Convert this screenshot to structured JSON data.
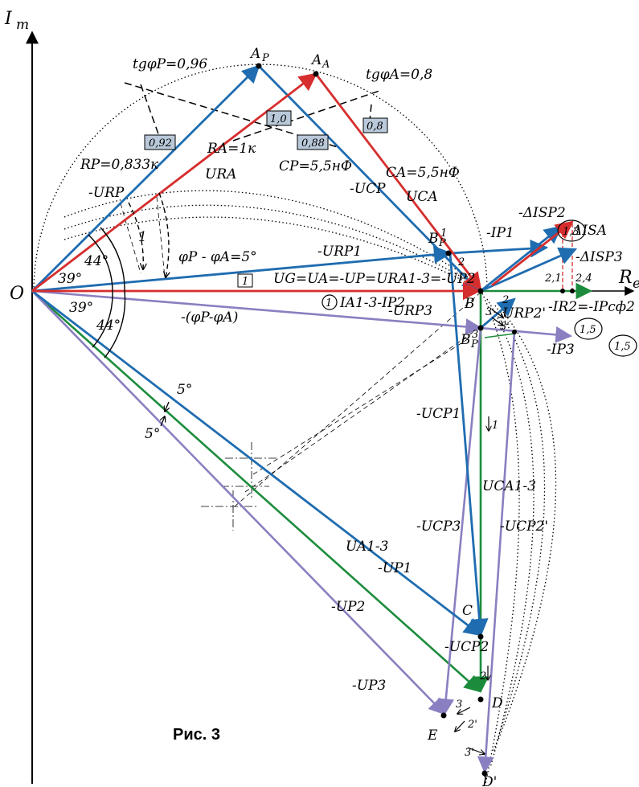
{
  "axes": {
    "y_label": "I",
    "y_sub": "m",
    "x_label": "R",
    "x_sub": "e"
  },
  "caption": "Рис. 3",
  "origin_label": "O",
  "points": {
    "AP": {
      "main": "A",
      "sub": "P"
    },
    "AA": {
      "main": "A",
      "sub": "A"
    },
    "B": "B",
    "B1P": {
      "main": "B",
      "sub": "P",
      "sup": "1"
    },
    "B3P": {
      "main": "B",
      "sub": "P",
      "sup": "3"
    },
    "C": "C",
    "D": "D",
    "Dprime": "D'",
    "E": "E"
  },
  "annotations": {
    "tgP": "tgφP=0,96",
    "tgA": "tgφA=0,8",
    "RP": "RP=0,833к",
    "RA": "RA=1к",
    "CP": "CP=5,5нФ",
    "CA": "CA=5,5нФ",
    "phi_diff": "φP - φA=5°",
    "neg_phi_diff": "-(φP-φA)",
    "UG": "UG=UA=-UP=URA1-3=-UP2",
    "I_eq": "IA1-3-IP2",
    "I_eq_circle": "1",
    "one_box": "1",
    "one_italic": "1",
    "ang39a": "39°",
    "ang44a": "44°",
    "ang39b": "39°",
    "ang44b": "44°",
    "ang5a": "5°",
    "ang5b": "5°"
  },
  "boxes": {
    "b092": "0,92",
    "b10": "1,0",
    "b08": "0,8",
    "b088": "0,88"
  },
  "vectors": {
    "URP": "-URP",
    "URA": "URA",
    "UCP": "-UCP",
    "UCA": "UCA",
    "URP1": "-URP1",
    "URP3": "-URP3",
    "UCP1": "-UCP1",
    "UCP3": "-UCP3",
    "UCA13": "UCA1-3",
    "UCP2prime": "-UCP2'",
    "URP2prime": "URP2'",
    "UCP2": "-UCP2",
    "UA13": "UA1-3",
    "UP1": "-UP1",
    "UP2": "-UP2",
    "UP3": "-UP3"
  },
  "currents": {
    "IP1": "-IP1",
    "IP1_circle": "1,3",
    "dISP2": "-ΔISP2",
    "dISA": "ΔISA",
    "dISP3": "-ΔISP3",
    "IR": "-IR2=-IPсф2",
    "IR_circle": "1,5",
    "IP3": "-IP3",
    "IP3_circle": "1,5"
  },
  "ticks": {
    "t2a": "2",
    "t21": "2,1",
    "t24": "2,4",
    "t3a": "3",
    "t2b": "2",
    "t3prime": "3'",
    "t1": "1",
    "t2c": "2",
    "t3c": "3",
    "t2prime": "2'",
    "t3prime2": "3'"
  },
  "colors": {
    "blue": "#1f6cb0",
    "red": "#d62e2e",
    "green": "#1c8c3c",
    "purple": "#8a7fc0",
    "box_fill": "#b9c9d9"
  }
}
